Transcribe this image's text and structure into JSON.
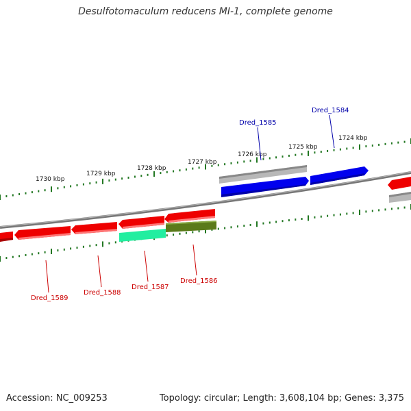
{
  "title": "Desulfotomaculum reducens MI-1, complete genome",
  "footer": {
    "accession": "Accession: NC_009253",
    "summary": "Topology: circular; Length: 3,608,104 bp; Genes: 3,375"
  },
  "tick_labels": [
    "1730 kbp",
    "1729 kbp",
    "1728 kbp",
    "1727 kbp",
    "1726 kbp",
    "1725 kbp",
    "1724 kbp"
  ],
  "genes_top": [
    {
      "label": "Dred_1585",
      "color": "#0000aa"
    },
    {
      "label": "Dred_1584",
      "color": "#0000aa"
    }
  ],
  "genes_bottom": [
    {
      "label": "Dred_1589",
      "color": "#cc0000"
    },
    {
      "label": "Dred_1588",
      "color": "#cc0000"
    },
    {
      "label": "Dred_1587",
      "color": "#cc0000"
    },
    {
      "label": "Dred_1586",
      "color": "#cc0000"
    }
  ],
  "colors": {
    "forward_gene": "#0000ee",
    "reverse_gene": "#ee0000",
    "backbone": "#888888",
    "rna_gray": "#b8b8b8",
    "cog_teal": "#22eea0",
    "cog_olive": "#5a7a1a",
    "tick_green": "#227722"
  }
}
